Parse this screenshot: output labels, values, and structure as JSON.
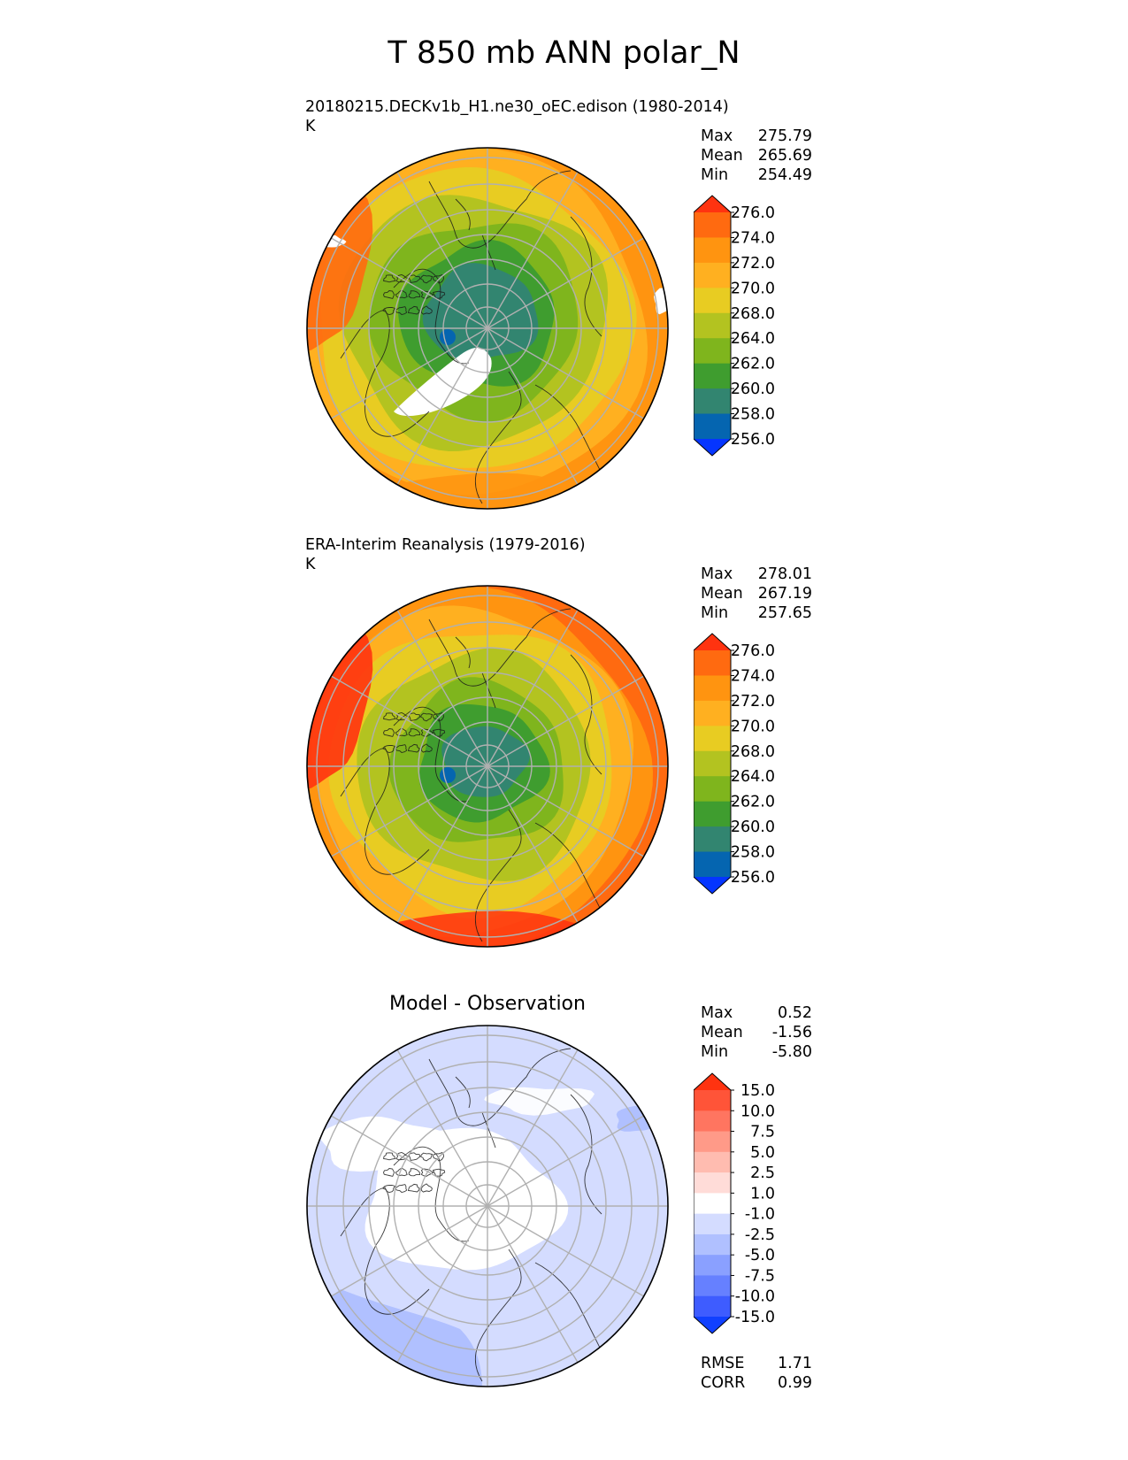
{
  "title": "T 850 mb ANN polar_N",
  "panels": [
    {
      "id": "test",
      "title": "20180215.DECKv1b_H1.ne30_oEC.edison (1980-2014)",
      "units": "K",
      "stats": [
        {
          "label": "Max",
          "value": "275.79"
        },
        {
          "label": "Mean",
          "value": "265.69"
        },
        {
          "label": "Min",
          "value": "254.49"
        }
      ]
    },
    {
      "id": "reference",
      "title": "ERA-Interim Reanalysis (1979-2016)",
      "units": "K",
      "stats": [
        {
          "label": "Max",
          "value": "278.01"
        },
        {
          "label": "Mean",
          "value": "267.19"
        },
        {
          "label": "Min",
          "value": "257.65"
        }
      ]
    },
    {
      "id": "diff",
      "title": "Model - Observation",
      "stats": [
        {
          "label": "Max",
          "value": "0.52"
        },
        {
          "label": "Mean",
          "value": "-1.56"
        },
        {
          "label": "Min",
          "value": "-5.80"
        }
      ],
      "metrics": [
        {
          "label": "RMSE",
          "value": "1.71"
        },
        {
          "label": "CORR",
          "value": "0.99"
        }
      ]
    }
  ],
  "chart_data": [
    {
      "type": "heatmap",
      "projection": "north polar stereographic",
      "title": "20180215.DECKv1b_H1.ne30_oEC.edison (1980-2014)",
      "units": "K",
      "colorbar_ticks": [
        "276.0",
        "274.0",
        "272.0",
        "270.0",
        "268.0",
        "264.0",
        "262.0",
        "260.0",
        "258.0",
        "256.0"
      ],
      "colorbar_colors": [
        "#ff3310",
        "#ff6a10",
        "#ff9410",
        "#ffb020",
        "#e8cc22",
        "#b3c320",
        "#7fb51d",
        "#3f9d2f",
        "#328570",
        "#0565b0",
        "#0535ff"
      ],
      "extend": "both",
      "max": 275.79,
      "mean": 265.69,
      "min": 254.49
    },
    {
      "type": "heatmap",
      "projection": "north polar stereographic",
      "title": "ERA-Interim Reanalysis (1979-2016)",
      "units": "K",
      "colorbar_ticks": [
        "276.0",
        "274.0",
        "272.0",
        "270.0",
        "268.0",
        "264.0",
        "262.0",
        "260.0",
        "258.0",
        "256.0"
      ],
      "colorbar_colors": [
        "#ff3310",
        "#ff6a10",
        "#ff9410",
        "#ffb020",
        "#e8cc22",
        "#b3c320",
        "#7fb51d",
        "#3f9d2f",
        "#328570",
        "#0565b0",
        "#0535ff"
      ],
      "extend": "both",
      "max": 278.01,
      "mean": 267.19,
      "min": 257.65
    },
    {
      "type": "heatmap",
      "projection": "north polar stereographic",
      "title": "Model - Observation",
      "colorbar_ticks": [
        "15.0",
        "10.0",
        "7.5",
        "5.0",
        "2.5",
        "1.0",
        "-1.0",
        "-2.5",
        "-5.0",
        "-7.5",
        "-10.0",
        "-15.0"
      ],
      "colorbar_colors": [
        "#ff3310",
        "#ff5438",
        "#ff7560",
        "#ff9a88",
        "#ffbcb0",
        "#ffdcd8",
        "#ffffff",
        "#d4dcff",
        "#b0c0ff",
        "#8aa0ff",
        "#6680ff",
        "#3e5cff",
        "#1040ff"
      ],
      "extend": "both",
      "max": 0.52,
      "mean": -1.56,
      "min": -5.8,
      "rmse": 1.71,
      "corr": 0.99
    }
  ]
}
